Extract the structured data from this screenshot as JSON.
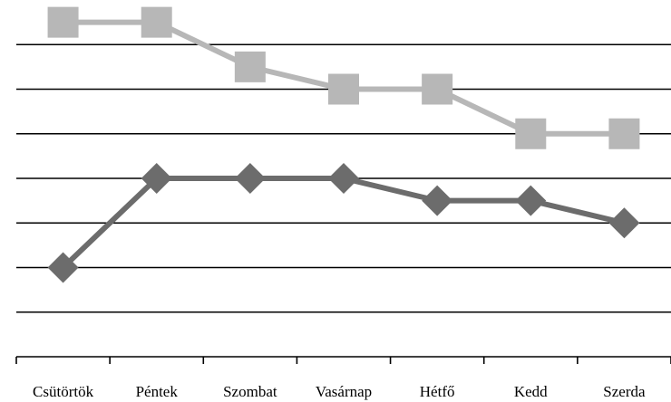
{
  "chart_data": {
    "type": "line",
    "categories": [
      "Csütörtök",
      "Péntek",
      "Szombat",
      "Vasárnap",
      "Hétfő",
      "Kedd",
      "Szerda"
    ],
    "series": [
      {
        "values": [
          7.5,
          7.5,
          6.5,
          6,
          6,
          5,
          5
        ],
        "color": "#b7b7b7",
        "marker": "square"
      },
      {
        "values": [
          2,
          4,
          4,
          4,
          3.5,
          3.5,
          3
        ],
        "color": "#6c6c6c",
        "marker": "diamond"
      }
    ],
    "ylim": [
      0,
      8
    ],
    "grid": true,
    "y_tick_labels_shown": false,
    "legend": "none"
  }
}
